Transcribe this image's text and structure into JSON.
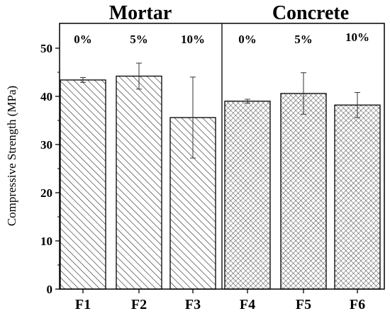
{
  "chart_data": {
    "type": "bar",
    "categories": [
      "F1",
      "F2",
      "F3",
      "F4",
      "F5",
      "F6"
    ],
    "values": [
      43.4,
      44.2,
      35.6,
      39.0,
      40.6,
      38.2
    ],
    "errors": [
      0.5,
      2.7,
      8.4,
      0.4,
      4.3,
      2.6
    ],
    "ylabel": "Compressive Strength (MPa)",
    "xlabel": "",
    "ylim": [
      0,
      55
    ],
    "yticks": [
      0,
      10,
      20,
      30,
      40,
      50
    ],
    "grid": false,
    "groups": [
      {
        "title": "Mortar",
        "categories": [
          "F1",
          "F2",
          "F3"
        ],
        "pattern": "diagonal-hatch"
      },
      {
        "title": "Concrete",
        "categories": [
          "F4",
          "F5",
          "F6"
        ],
        "pattern": "crosshatch"
      }
    ],
    "annotations": [
      "0%",
      "5%",
      "10%",
      "0%",
      "5%",
      "10%"
    ],
    "colors": {
      "bar_fill": "#ffffff",
      "bar_hatch": "#333333",
      "axis": "#000000"
    }
  }
}
